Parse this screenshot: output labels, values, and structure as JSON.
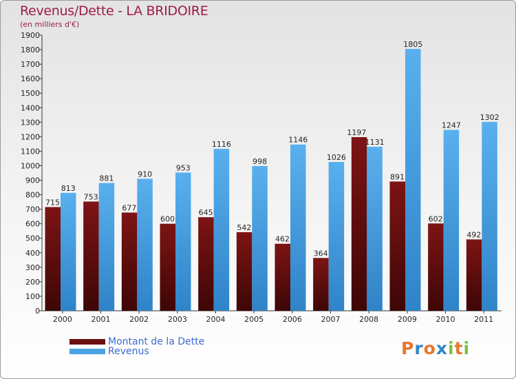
{
  "header": {
    "title": "Revenus/Dette - LA BRIDOIRE",
    "subtitle": "(en milliers d'€)"
  },
  "legend": {
    "debt_label": "Montant de la Dette",
    "revenue_label": "Revenus"
  },
  "logo": {
    "text": "Proxiti"
  },
  "colors": {
    "debt": "#6b0f0f",
    "revenue": "#4aa3e2",
    "title": "#9b1b4b",
    "legend_text": "#3b6ad6"
  },
  "chart_data": {
    "type": "bar",
    "title": "Revenus/Dette - LA BRIDOIRE",
    "subtitle": "(en milliers d'€)",
    "categories": [
      "2000",
      "2001",
      "2002",
      "2003",
      "2004",
      "2005",
      "2006",
      "2007",
      "2008",
      "2009",
      "2010",
      "2011"
    ],
    "series": [
      {
        "name": "Montant de la Dette",
        "values": [
          715,
          753,
          677,
          600,
          645,
          542,
          462,
          364,
          1197,
          891,
          602,
          492
        ]
      },
      {
        "name": "Revenus",
        "values": [
          813,
          881,
          910,
          953,
          1116,
          998,
          1146,
          1026,
          1131,
          1805,
          1247,
          1302
        ]
      }
    ],
    "ylim": [
      0,
      1900
    ],
    "yticks": [
      0,
      100,
      200,
      300,
      400,
      500,
      600,
      700,
      800,
      900,
      1000,
      1100,
      1200,
      1300,
      1400,
      1500,
      1600,
      1700,
      1800,
      1900
    ],
    "grid": false,
    "legend_position": "bottom-left"
  }
}
